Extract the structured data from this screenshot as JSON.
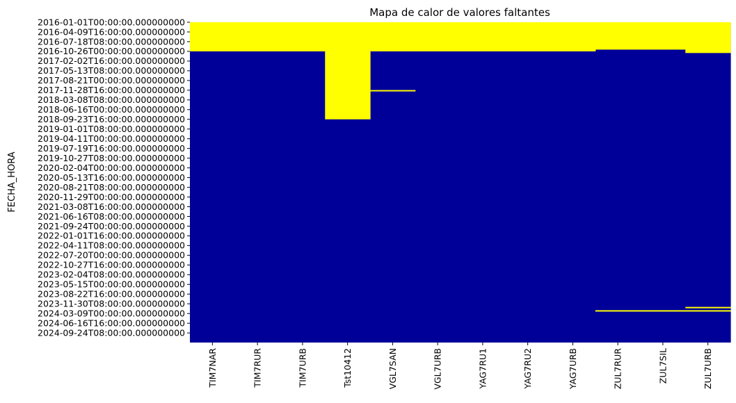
{
  "chart_data": {
    "type": "heatmap",
    "title": "Mapa de calor de valores faltantes",
    "xlabel": "",
    "ylabel": "FECHA_HORA",
    "legend": "none",
    "grid": false,
    "colors": {
      "present": "#000099",
      "missing": "#ffff00"
    },
    "columns": [
      "TIM7NAR",
      "TIM7RUR",
      "TIM7URB",
      "Tst10412",
      "VGL7SAN",
      "VGL7URB",
      "YAG7RU1",
      "YAG7RU2",
      "YAG7URB",
      "ZUL7RUR",
      "ZUL7SIL",
      "ZUL7URB"
    ],
    "y_tick_labels": [
      "2016-01-01T00:00:00.000000000",
      "2016-04-09T16:00:00.000000000",
      "2016-07-18T08:00:00.000000000",
      "2016-10-26T00:00:00.000000000",
      "2017-02-02T16:00:00.000000000",
      "2017-05-13T08:00:00.000000000",
      "2017-08-21T00:00:00.000000000",
      "2017-11-28T16:00:00.000000000",
      "2018-03-08T08:00:00.000000000",
      "2018-06-16T00:00:00.000000000",
      "2018-09-23T16:00:00.000000000",
      "2019-01-01T08:00:00.000000000",
      "2019-04-11T00:00:00.000000000",
      "2019-07-19T16:00:00.000000000",
      "2019-10-27T08:00:00.000000000",
      "2020-02-04T00:00:00.000000000",
      "2020-05-13T16:00:00.000000000",
      "2020-08-21T08:00:00.000000000",
      "2020-11-29T00:00:00.000000000",
      "2021-03-08T16:00:00.000000000",
      "2021-06-16T08:00:00.000000000",
      "2021-09-24T00:00:00.000000000",
      "2022-01-01T16:00:00.000000000",
      "2022-04-11T08:00:00.000000000",
      "2022-07-20T00:00:00.000000000",
      "2022-10-27T16:00:00.000000000",
      "2023-02-04T08:00:00.000000000",
      "2023-05-15T00:00:00.000000000",
      "2023-08-22T16:00:00.000000000",
      "2023-11-30T08:00:00.000000000",
      "2024-03-09T00:00:00.000000000",
      "2024-06-16T16:00:00.000000000",
      "2024-09-24T08:00:00.000000000"
    ],
    "y_range": [
      "2016-01-01T00:00",
      "2025-01-01T00:00"
    ],
    "missing_ranges": [
      {
        "column": "TIM7NAR",
        "start": "2016-01-01T00:00",
        "end": "2016-10-26T00:00"
      },
      {
        "column": "TIM7RUR",
        "start": "2016-01-01T00:00",
        "end": "2016-10-26T00:00"
      },
      {
        "column": "TIM7URB",
        "start": "2016-01-01T00:00",
        "end": "2016-10-26T00:00"
      },
      {
        "column": "Tst10412",
        "start": "2016-01-01T00:00",
        "end": "2018-09-23T16:00"
      },
      {
        "column": "VGL7SAN",
        "start": "2016-01-01T00:00",
        "end": "2016-10-26T00:00"
      },
      {
        "column": "VGL7SAN",
        "start": "2017-11-27T00:00",
        "end": "2017-11-30T00:00"
      },
      {
        "column": "VGL7URB",
        "start": "2016-01-01T00:00",
        "end": "2016-10-26T00:00"
      },
      {
        "column": "YAG7RU1",
        "start": "2016-01-01T00:00",
        "end": "2016-10-26T00:00"
      },
      {
        "column": "YAG7RU2",
        "start": "2016-01-01T00:00",
        "end": "2016-10-26T00:00"
      },
      {
        "column": "YAG7URB",
        "start": "2016-01-01T00:00",
        "end": "2016-10-26T00:00"
      },
      {
        "column": "ZUL7RUR",
        "start": "2016-01-01T00:00",
        "end": "2016-10-08T00:00"
      },
      {
        "column": "ZUL7RUR",
        "start": "2024-02-04T00:00",
        "end": "2024-02-12T00:00"
      },
      {
        "column": "ZUL7SIL",
        "start": "2016-01-01T00:00",
        "end": "2016-10-08T00:00"
      },
      {
        "column": "ZUL7SIL",
        "start": "2024-02-04T00:00",
        "end": "2024-02-12T00:00"
      },
      {
        "column": "ZUL7URB",
        "start": "2016-01-01T00:00",
        "end": "2016-11-12T00:00"
      },
      {
        "column": "ZUL7URB",
        "start": "2024-01-01T00:00",
        "end": "2024-01-10T00:00"
      },
      {
        "column": "ZUL7URB",
        "start": "2024-02-04T00:00",
        "end": "2024-02-12T00:00"
      }
    ]
  }
}
